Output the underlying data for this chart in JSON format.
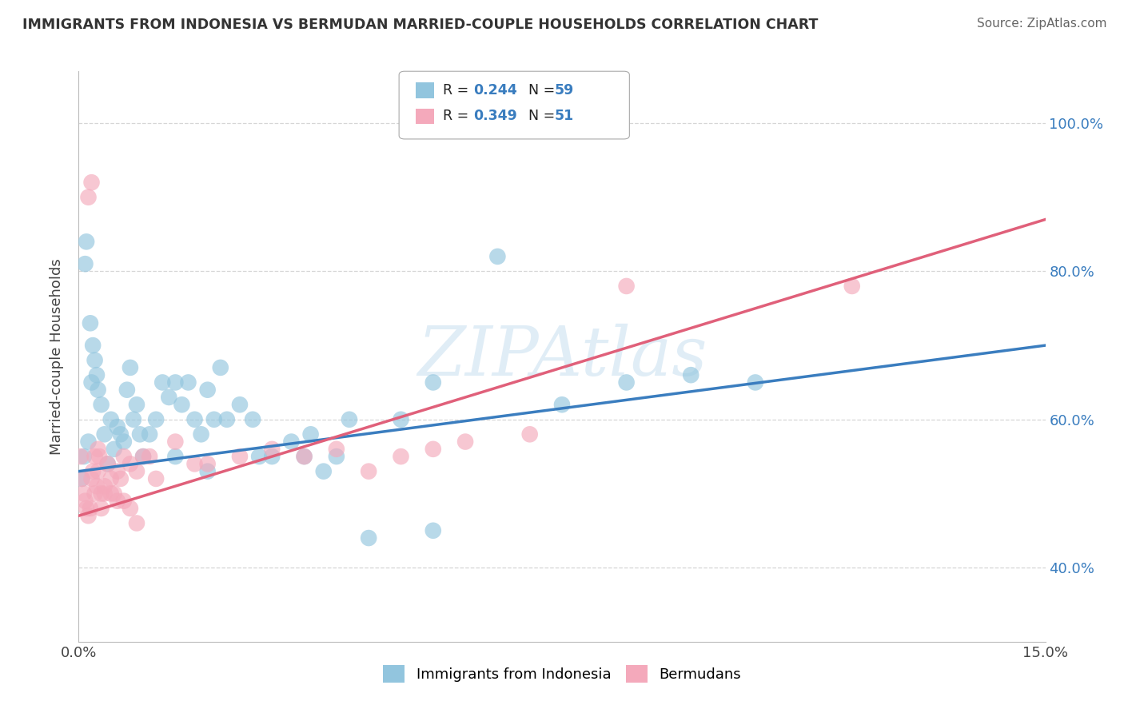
{
  "title": "IMMIGRANTS FROM INDONESIA VS BERMUDAN MARRIED-COUPLE HOUSEHOLDS CORRELATION CHART",
  "source": "Source: ZipAtlas.com",
  "ylabel": "Married-couple Households",
  "xlim": [
    0.0,
    15.0
  ],
  "ylim": [
    30.0,
    107.0
  ],
  "blue_R": 0.244,
  "blue_N": 59,
  "pink_R": 0.349,
  "pink_N": 51,
  "blue_color": "#92c5de",
  "pink_color": "#f4a9bb",
  "blue_line_color": "#3a7dbf",
  "pink_line_color": "#e0607a",
  "legend_label_blue": "Immigrants from Indonesia",
  "legend_label_pink": "Bermudans",
  "watermark": "ZIPAtlas",
  "background_color": "#ffffff",
  "ytick_vals": [
    40,
    60,
    80,
    100
  ],
  "ytick_labels": [
    "40.0%",
    "60.0%",
    "80.0%",
    "100.0%"
  ],
  "blue_line_x0": 0.0,
  "blue_line_y0": 53.0,
  "blue_line_x1": 15.0,
  "blue_line_y1": 70.0,
  "pink_line_x0": 0.0,
  "pink_line_y0": 47.0,
  "pink_line_x1": 15.0,
  "pink_line_y1": 87.0,
  "blue_x": [
    0.05,
    0.08,
    0.1,
    0.12,
    0.15,
    0.18,
    0.2,
    0.22,
    0.25,
    0.28,
    0.3,
    0.35,
    0.4,
    0.45,
    0.5,
    0.55,
    0.6,
    0.65,
    0.7,
    0.75,
    0.8,
    0.85,
    0.9,
    0.95,
    1.0,
    1.1,
    1.2,
    1.3,
    1.4,
    1.5,
    1.6,
    1.7,
    1.8,
    1.9,
    2.0,
    2.1,
    2.2,
    2.3,
    2.5,
    2.7,
    3.0,
    3.3,
    3.6,
    4.0,
    4.5,
    5.0,
    5.5,
    6.5,
    7.5,
    8.5,
    9.5,
    10.5,
    3.8,
    4.2,
    1.5,
    2.0,
    2.8,
    3.5,
    5.5
  ],
  "blue_y": [
    52,
    55,
    81,
    84,
    57,
    73,
    65,
    70,
    68,
    66,
    64,
    62,
    58,
    54,
    60,
    56,
    59,
    58,
    57,
    64,
    67,
    60,
    62,
    58,
    55,
    58,
    60,
    65,
    63,
    55,
    62,
    65,
    60,
    58,
    64,
    60,
    67,
    60,
    62,
    60,
    55,
    57,
    58,
    55,
    44,
    60,
    65,
    82,
    62,
    65,
    66,
    65,
    53,
    60,
    65,
    53,
    55,
    55,
    45
  ],
  "pink_x": [
    0.03,
    0.05,
    0.08,
    0.1,
    0.12,
    0.15,
    0.18,
    0.2,
    0.22,
    0.25,
    0.28,
    0.3,
    0.32,
    0.35,
    0.4,
    0.45,
    0.5,
    0.55,
    0.6,
    0.65,
    0.7,
    0.8,
    0.9,
    1.0,
    1.1,
    1.2,
    1.5,
    1.8,
    2.0,
    2.5,
    3.0,
    3.5,
    4.0,
    4.5,
    5.0,
    5.5,
    6.0,
    7.0,
    8.5,
    12.0,
    0.15,
    0.2,
    0.25,
    0.3,
    0.35,
    0.4,
    0.5,
    0.6,
    0.7,
    0.8,
    0.9
  ],
  "pink_y": [
    55,
    52,
    50,
    49,
    48,
    47,
    48,
    52,
    53,
    50,
    51,
    53,
    55,
    48,
    50,
    54,
    52,
    50,
    53,
    52,
    55,
    54,
    53,
    55,
    55,
    52,
    57,
    54,
    54,
    55,
    56,
    55,
    56,
    53,
    55,
    56,
    57,
    58,
    78,
    78,
    90,
    92,
    55,
    56,
    50,
    51,
    50,
    49,
    49,
    48,
    46
  ]
}
